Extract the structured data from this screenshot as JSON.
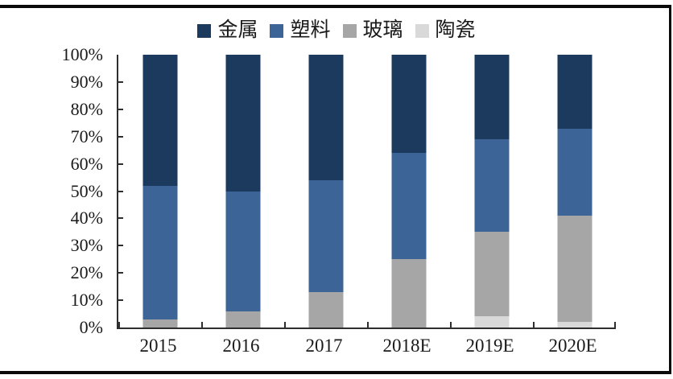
{
  "window": {
    "background_color": "#ffffff",
    "frame_color": "#0a0a0a",
    "axis_color": "#2e2e2e",
    "text_color": "#1a1a1a"
  },
  "chart_data": {
    "type": "bar",
    "stacked": true,
    "percent_stacked": true,
    "title": "",
    "xlabel": "",
    "ylabel": "",
    "categories": [
      "2015",
      "2016",
      "2017",
      "2018E",
      "2019E",
      "2020E"
    ],
    "series": [
      {
        "name": "金属",
        "color": "#1b3a5e",
        "values": [
          48,
          50,
          46,
          36,
          31,
          27
        ]
      },
      {
        "name": "塑料",
        "color": "#3c6497",
        "values": [
          49,
          44,
          41,
          39,
          34,
          32
        ]
      },
      {
        "name": "玻璃",
        "color": "#a6a6a6",
        "values": [
          3,
          6,
          13,
          25,
          31,
          39
        ]
      },
      {
        "name": "陶瓷",
        "color": "#d9d9d9",
        "values": [
          0,
          0,
          0,
          0,
          4,
          2
        ]
      }
    ],
    "stack_order_bottom_to_top": [
      "陶瓷",
      "玻璃",
      "塑料",
      "金属"
    ],
    "ylim": [
      0,
      100
    ],
    "y_tick_labels": [
      "100%",
      "90%",
      "80%",
      "70%",
      "60%",
      "50%",
      "40%",
      "30%",
      "20%",
      "10%",
      "0%"
    ],
    "grid": false,
    "legend_position": "top"
  }
}
